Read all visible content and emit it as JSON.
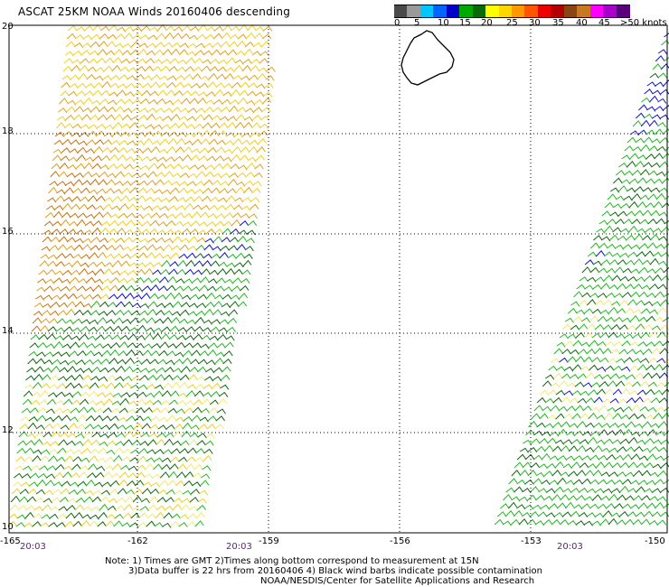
{
  "title": "ASCAT 25KM NOAA Winds 20160406 descending",
  "latitude_labels": [
    "20",
    "18",
    "16",
    "14",
    "12",
    "10"
  ],
  "longitude_labels": [
    "-165",
    "-162",
    "-159",
    "-156",
    "-153",
    "-150"
  ],
  "time_labels": [
    "20:03",
    "20:03",
    "20:03"
  ],
  "notes": {
    "line1": "Note: 1) Times are GMT 2)Times along bottom correspond to measurement at 15N",
    "line2": "3)Data buffer is 22 hrs from 20160406 4) Black wind barbs indicate possible contamination",
    "line3": "NOAA/NESDIS/Center for Satellite Applications and Research"
  },
  "color_scale": {
    "labels": [
      "0",
      "5",
      "10",
      "15",
      "20",
      "25",
      "30",
      "35",
      "40",
      "45",
      ">50 knots"
    ],
    "colors": [
      "#4a4a4a",
      "#9a9a9a",
      "#00c8ff",
      "#0064ff",
      "#0000c8",
      "#00aa00",
      "#0a6a0a",
      "#ffff00",
      "#ffd700",
      "#ff9900",
      "#ff5500",
      "#ee0000",
      "#b40000",
      "#8b4513",
      "#c87820",
      "#ff00ff",
      "#aa00cc",
      "#5a007a"
    ]
  },
  "wind_colors": {
    "yellow": "#f0d020",
    "pale_yellow": "#f4e870",
    "orange": "#e0a020",
    "dark_orange": "#c87010",
    "green": "#22b822",
    "dark_green": "#116611",
    "blue": "#1010cc"
  }
}
